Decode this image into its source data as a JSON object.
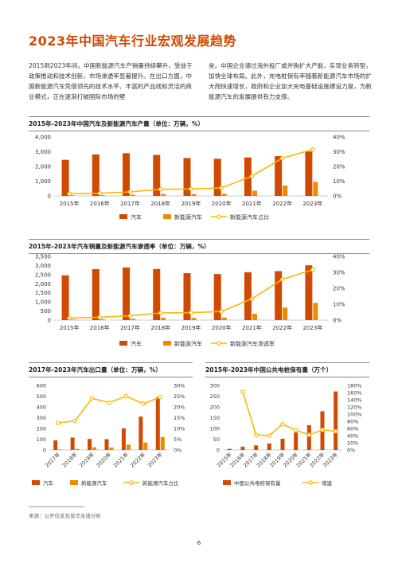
{
  "page_title": "2023年中国汽车行业宏观发展趋势",
  "intro_left": "2015到2023年间，中国新能源汽车产销量持续攀升，受益于政策推动和技术创新，市场渗透率显著提升。在出口方面，中国新能源汽车凭借领先的技术水平、丰富的产品线和灵活的商业模式，正在逐渐打破国际市场的壁",
  "intro_right": "垒。中国企业通过海外投厂或并购扩大产能，实现业务转型，加快全球布局。此外，充电桩保有率随着新能源汽车市场的扩大而快速增长，政府和企业加大充电基础设施建设力度，为新能源汽车的发展提供有力支撑。",
  "colors": {
    "accent": "#d04a02",
    "secondary": "#eb8c00",
    "line": "#ffb600"
  },
  "source": "来源：公开信息及普华永道分析",
  "page_number": "6",
  "chart_data": [
    {
      "id": "production",
      "type": "bar",
      "title": "2015年-2023年中国汽车及新能源汽车产量（单位：万辆，%）",
      "categories": [
        "2015年",
        "2016年",
        "2017年",
        "2018年",
        "2019年",
        "2020年",
        "2021年",
        "2022年",
        "2023年"
      ],
      "ylim": [
        0,
        4000
      ],
      "y_ticks": [
        "0",
        "1,000",
        "2,000",
        "3,000",
        "4,000"
      ],
      "y2lim": [
        0,
        40
      ],
      "y2_ticks": [
        "0%",
        "10%",
        "20%",
        "30%",
        "40%"
      ],
      "series": [
        {
          "name": "汽车",
          "kind": "bar",
          "values": [
            2450,
            2810,
            2900,
            2780,
            2570,
            2520,
            2610,
            2700,
            3010
          ]
        },
        {
          "name": "新能源汽车",
          "kind": "bar",
          "values": [
            40,
            50,
            80,
            130,
            120,
            140,
            350,
            700,
            950
          ]
        },
        {
          "name": "新能源汽车占比",
          "kind": "line",
          "axis": "right",
          "values": [
            1.5,
            1.8,
            2.7,
            4.5,
            4.7,
            5.4,
            13.4,
            25.6,
            31.5
          ]
        }
      ]
    },
    {
      "id": "sales",
      "type": "bar",
      "title": "2015年-2023年汽车销量及新能源汽车渗透率（单位：万辆，%）",
      "categories": [
        "2015年",
        "2016年",
        "2017年",
        "2018年",
        "2019年",
        "2020年",
        "2021年",
        "2022年",
        "2023年"
      ],
      "ylim": [
        0,
        3500
      ],
      "y_ticks": [
        "0",
        "500",
        "1,000",
        "1,500",
        "2,000",
        "2,500",
        "3,000",
        "3,500"
      ],
      "y2lim": [
        0,
        40
      ],
      "y2_ticks": [
        "0%",
        "10%",
        "20%",
        "30%",
        "40%"
      ],
      "series": [
        {
          "name": "汽车",
          "kind": "bar",
          "values": [
            2460,
            2800,
            2890,
            2810,
            2580,
            2530,
            2630,
            2690,
            3010
          ]
        },
        {
          "name": "新能源汽车",
          "kind": "bar",
          "values": [
            33,
            50,
            78,
            125,
            120,
            137,
            350,
            690,
            950
          ]
        },
        {
          "name": "新能源汽车渗透率",
          "kind": "line",
          "axis": "right",
          "values": [
            1.3,
            1.8,
            2.7,
            4.5,
            4.7,
            5.4,
            13.4,
            25.6,
            31.6
          ]
        }
      ]
    },
    {
      "id": "export",
      "type": "bar",
      "title": "2017年-2023年汽车出口量（单位：万辆，%）",
      "categories": [
        "2017年",
        "2018年",
        "2019年",
        "2020年",
        "2021年",
        "2022年",
        "2023年"
      ],
      "ylim": [
        0,
        600
      ],
      "y_ticks": [
        "0",
        "100",
        "200",
        "300",
        "400",
        "500",
        "600"
      ],
      "y2lim": [
        0,
        30
      ],
      "y2_ticks": [
        "0%",
        "5%",
        "10%",
        "15%",
        "20%",
        "25%",
        "30%"
      ],
      "series": [
        {
          "name": "汽车",
          "kind": "bar",
          "values": [
            89,
            115,
            102,
            100,
            200,
            310,
            490
          ]
        },
        {
          "name": "新能源汽车",
          "kind": "bar",
          "values": [
            5,
            10,
            25,
            22,
            50,
            68,
            120
          ]
        },
        {
          "name": "新能源汽车占比",
          "kind": "line",
          "axis": "right",
          "values": [
            12.5,
            13.5,
            24,
            22,
            25,
            21.5,
            24.5
          ]
        }
      ]
    },
    {
      "id": "charging",
      "type": "bar",
      "title": "2015年-2023年中国公共电桩保有量（万个）",
      "categories": [
        "2015年",
        "2016年",
        "2017年",
        "2018年",
        "2019年",
        "2020年",
        "2021年",
        "2022年",
        "2023年"
      ],
      "ylim": [
        0,
        300
      ],
      "y_ticks": [
        "0",
        "50",
        "100",
        "150",
        "200",
        "250",
        "300"
      ],
      "y2lim": [
        0,
        180
      ],
      "y2_ticks": [
        "0%",
        "20%",
        "40%",
        "60%",
        "80%",
        "100%",
        "120%",
        "140%",
        "160%",
        "180%"
      ],
      "series": [
        {
          "name": "中国公共电桩保有量",
          "kind": "bar",
          "values": [
            5,
            15,
            21,
            30,
            52,
            81,
            115,
            180,
            272
          ]
        },
        {
          "name": "增速",
          "kind": "line",
          "axis": "right",
          "values": [
            null,
            162,
            42,
            40,
            72,
            55,
            42,
            56,
            52
          ]
        }
      ]
    }
  ]
}
